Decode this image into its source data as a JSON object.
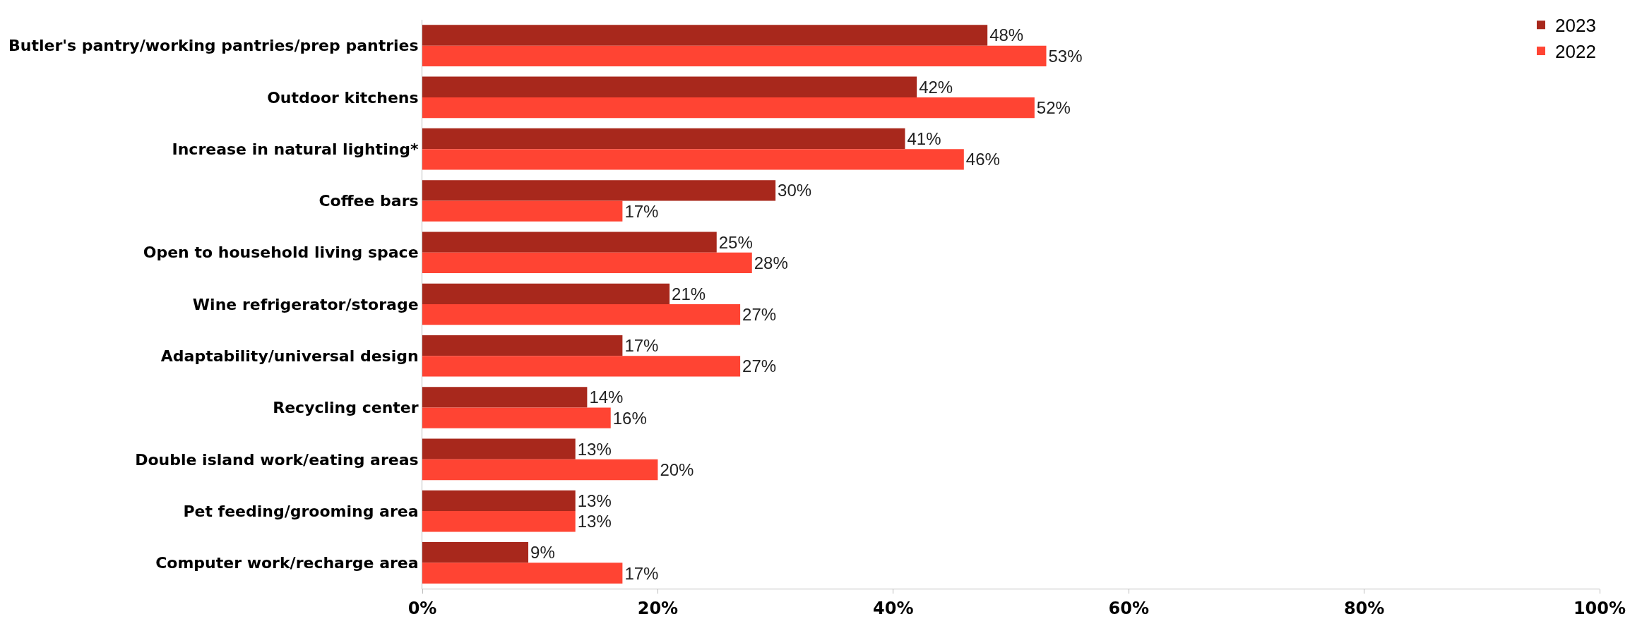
{
  "chart_data": {
    "type": "bar",
    "orientation": "horizontal",
    "categories": [
      "Butler's pantry/working pantries/prep pantries",
      "Outdoor kitchens",
      "Increase in natural lighting*",
      "Coffee bars",
      "Open to household living space",
      "Wine refrigerator/storage",
      "Adaptability/universal design",
      "Recycling center",
      "Double island work/eating areas",
      "Pet feeding/grooming area",
      "Computer work/recharge area"
    ],
    "series": [
      {
        "name": "2023",
        "color": "#a8281c",
        "values": [
          48,
          42,
          41,
          30,
          25,
          21,
          17,
          14,
          13,
          13,
          9
        ],
        "value_labels": [
          "48%",
          "42%",
          "41%",
          "30%",
          "25%",
          "21%",
          "17%",
          "14%",
          "13%",
          "13%",
          "9%"
        ]
      },
      {
        "name": "2022",
        "color": "#ff4433",
        "values": [
          53,
          52,
          46,
          17,
          28,
          27,
          27,
          16,
          20,
          13,
          17
        ],
        "value_labels": [
          "53%",
          "52%",
          "46%",
          "17%",
          "28%",
          "27%",
          "27%",
          "16%",
          "20%",
          "13%",
          "17%"
        ]
      }
    ],
    "xlim": [
      0,
      100
    ],
    "xticks": [
      {
        "value": 0,
        "label": "0%"
      },
      {
        "value": 20,
        "label": "20%"
      },
      {
        "value": 40,
        "label": "40%"
      },
      {
        "value": 60,
        "label": "60%"
      },
      {
        "value": 80,
        "label": "80%"
      },
      {
        "value": 100,
        "label": "100%"
      }
    ],
    "legend": "top right"
  }
}
